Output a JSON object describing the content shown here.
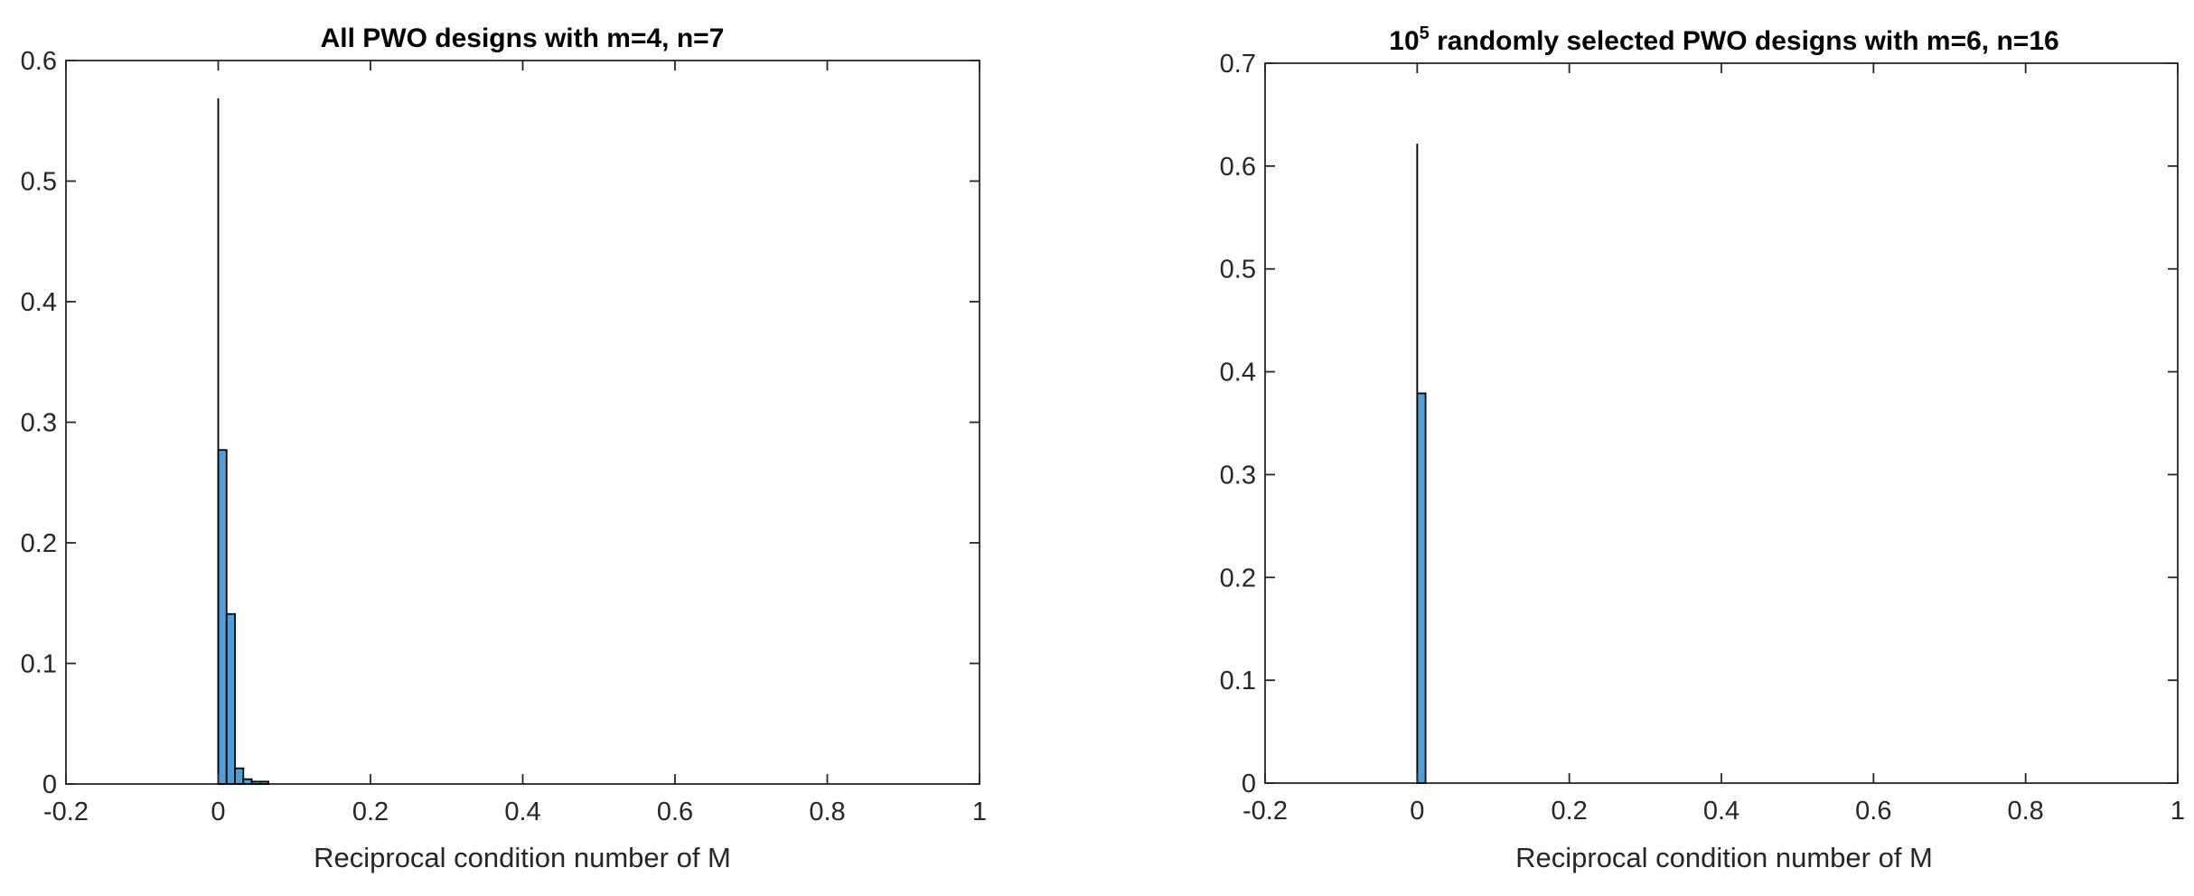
{
  "chart_data": [
    {
      "type": "bar",
      "title": "All PWO designs with m=4, n=7",
      "xlabel": "Reciprocal condition number of M",
      "ylabel": "",
      "xlim": [
        -0.2,
        1
      ],
      "ylim": [
        0,
        0.6
      ],
      "xticks": [
        -0.2,
        0,
        0.2,
        0.4,
        0.6,
        0.8,
        1
      ],
      "yticks": [
        0,
        0.1,
        0.2,
        0.3,
        0.4,
        0.5,
        0.6
      ],
      "xtick_labels": [
        "-0.2",
        "0",
        "0.2",
        "0.4",
        "0.6",
        "0.8",
        "1"
      ],
      "ytick_labels": [
        "0",
        "0.1",
        "0.2",
        "0.3",
        "0.4",
        "0.5",
        "0.6"
      ],
      "grid": false,
      "bar_color": "#4f9fd6",
      "bins": [
        {
          "start": 0,
          "end": 5e-05,
          "value": 0.568
        },
        {
          "start": 5e-05,
          "end": 0.011,
          "value": 0.277
        },
        {
          "start": 0.011,
          "end": 0.022,
          "value": 0.141
        },
        {
          "start": 0.022,
          "end": 0.033,
          "value": 0.013
        },
        {
          "start": 0.033,
          "end": 0.044,
          "value": 0.004
        },
        {
          "start": 0.044,
          "end": 0.055,
          "value": 0.002
        },
        {
          "start": 0.055,
          "end": 0.066,
          "value": 0.002
        }
      ]
    },
    {
      "type": "bar",
      "title_base": "10",
      "title_exponent": "5",
      "title_rest": " randomly selected PWO designs with m=6, n=16",
      "xlabel": "Reciprocal condition number of M",
      "ylabel": "",
      "xlim": [
        -0.2,
        1
      ],
      "ylim": [
        0,
        0.7
      ],
      "xticks": [
        -0.2,
        0,
        0.2,
        0.4,
        0.6,
        0.8,
        1
      ],
      "yticks": [
        0,
        0.1,
        0.2,
        0.3,
        0.4,
        0.5,
        0.6,
        0.7
      ],
      "xtick_labels": [
        "-0.2",
        "0",
        "0.2",
        "0.4",
        "0.6",
        "0.8",
        "1"
      ],
      "ytick_labels": [
        "0",
        "0.1",
        "0.2",
        "0.3",
        "0.4",
        "0.5",
        "0.6",
        "0.7"
      ],
      "grid": false,
      "bar_color": "#4f9fd6",
      "bins": [
        {
          "start": 0,
          "end": 5e-05,
          "value": 0.621
        },
        {
          "start": 5e-05,
          "end": 0.011,
          "value": 0.379
        }
      ]
    }
  ]
}
